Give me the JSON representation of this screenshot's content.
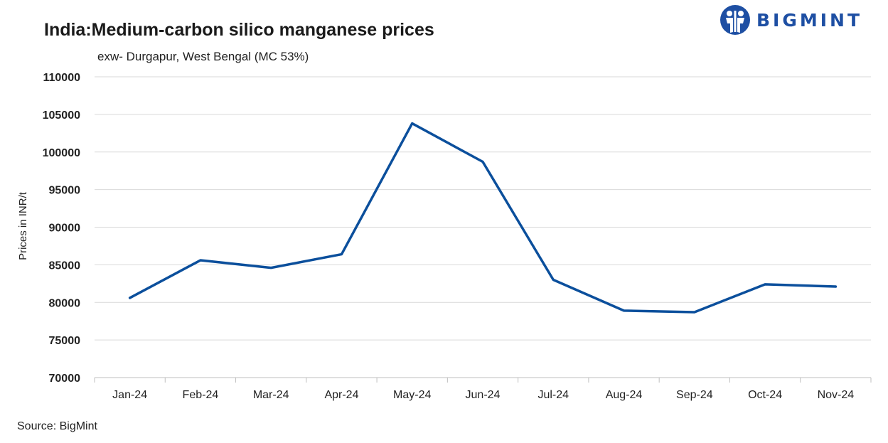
{
  "header": {
    "title": "India:Medium-carbon silico manganese prices",
    "subtitle": "exw- Durgapur, West Bengal (MC 53%)",
    "source": "Source: BigMint",
    "logo_text": "BIGMINT"
  },
  "colors": {
    "line": "#0b4f9c",
    "grid": "#d9d9d9",
    "logo": "#1e4fa3"
  },
  "icons": {
    "logo": "bigmint-logo-icon"
  },
  "chart_data": {
    "type": "line",
    "title": "India:Medium-carbon silico manganese prices",
    "subtitle": "exw- Durgapur, West Bengal (MC 53%)",
    "xlabel": "",
    "ylabel": "Prices in INR/t",
    "categories": [
      "Jan-24",
      "Feb-24",
      "Mar-24",
      "Apr-24",
      "May-24",
      "Jun-24",
      "Jul-24",
      "Aug-24",
      "Sep-24",
      "Oct-24",
      "Nov-24"
    ],
    "series": [
      {
        "values": [
          80600,
          85600,
          84600,
          86400,
          103800,
          98700,
          83000,
          78900,
          78700,
          82400,
          82100
        ]
      }
    ],
    "ylim": [
      70000,
      110000
    ],
    "yticks": [
      70000,
      75000,
      80000,
      85000,
      90000,
      95000,
      100000,
      105000,
      110000
    ],
    "grid": true,
    "legend": "none"
  }
}
